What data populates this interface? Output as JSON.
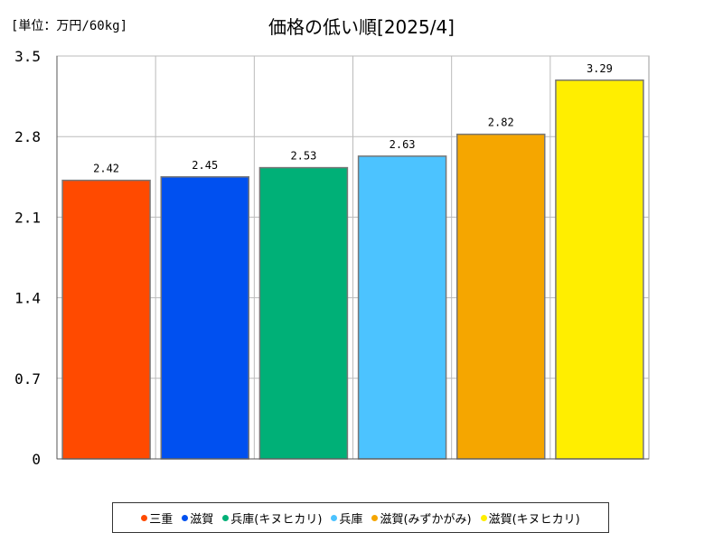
{
  "chart_data": {
    "type": "bar",
    "title": "価格の低い順[2025/4]",
    "unit_label": "[単位：万円/60kg]",
    "categories": [
      "三重",
      "滋賀",
      "兵庫(キヌヒカリ)",
      "兵庫",
      "滋賀(みずかがみ)",
      "滋賀(キヌヒカリ)"
    ],
    "values": [
      2.42,
      2.45,
      2.53,
      2.63,
      2.82,
      3.29
    ],
    "data_labels": [
      "2.42",
      "2.45",
      "2.53",
      "2.63",
      "2.82",
      "3.29"
    ],
    "colors": [
      "#ff4a00",
      "#0050f0",
      "#00b077",
      "#4cc3ff",
      "#f5a600",
      "#ffee00"
    ],
    "ylim": [
      0,
      3.5
    ],
    "yticks": [
      0,
      0.7,
      1.4,
      2.1,
      2.8,
      3.5
    ],
    "ytick_labels": [
      "0",
      "0.7",
      "1.4",
      "2.1",
      "2.8",
      "3.5"
    ],
    "grid": true,
    "legend_position": "bottom"
  }
}
